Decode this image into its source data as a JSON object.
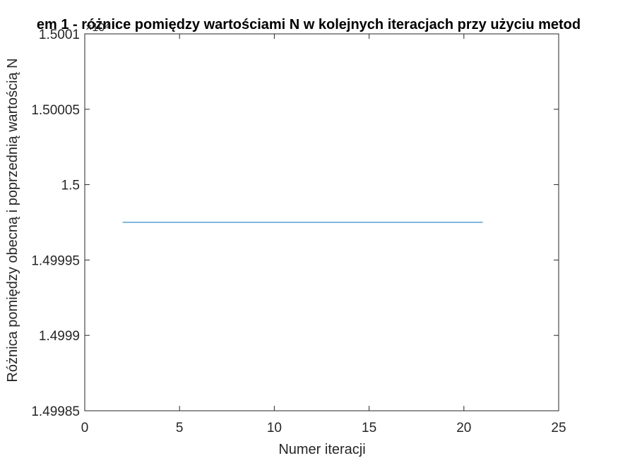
{
  "chart_data": {
    "type": "line",
    "title": "em 1 - różnice pomiędzy wartościami N w kolejnych iteracjach przy użyciu metod",
    "xlabel": "Numer iteracji",
    "ylabel": "Różnica pomiędzy obecną i poprzednią wartością N",
    "y_exponent_label": "×10⁴",
    "xlim": [
      0,
      25
    ],
    "ylim": [
      1.49985,
      1.5001
    ],
    "xticks": [
      0,
      5,
      10,
      15,
      20,
      25
    ],
    "xtick_labels": [
      "0",
      "5",
      "10",
      "15",
      "20",
      "25"
    ],
    "yticks": [
      1.49985,
      1.4999,
      1.49995,
      1.5,
      1.50005,
      1.5001
    ],
    "ytick_labels": [
      "1.49985",
      "1.4999",
      "1.49995",
      "1.5",
      "1.50005",
      "1.5001"
    ],
    "grid": false,
    "series": [
      {
        "x": [
          2,
          21
        ],
        "y": [
          1.499975,
          1.499975
        ],
        "color": "#0072BD"
      }
    ]
  }
}
